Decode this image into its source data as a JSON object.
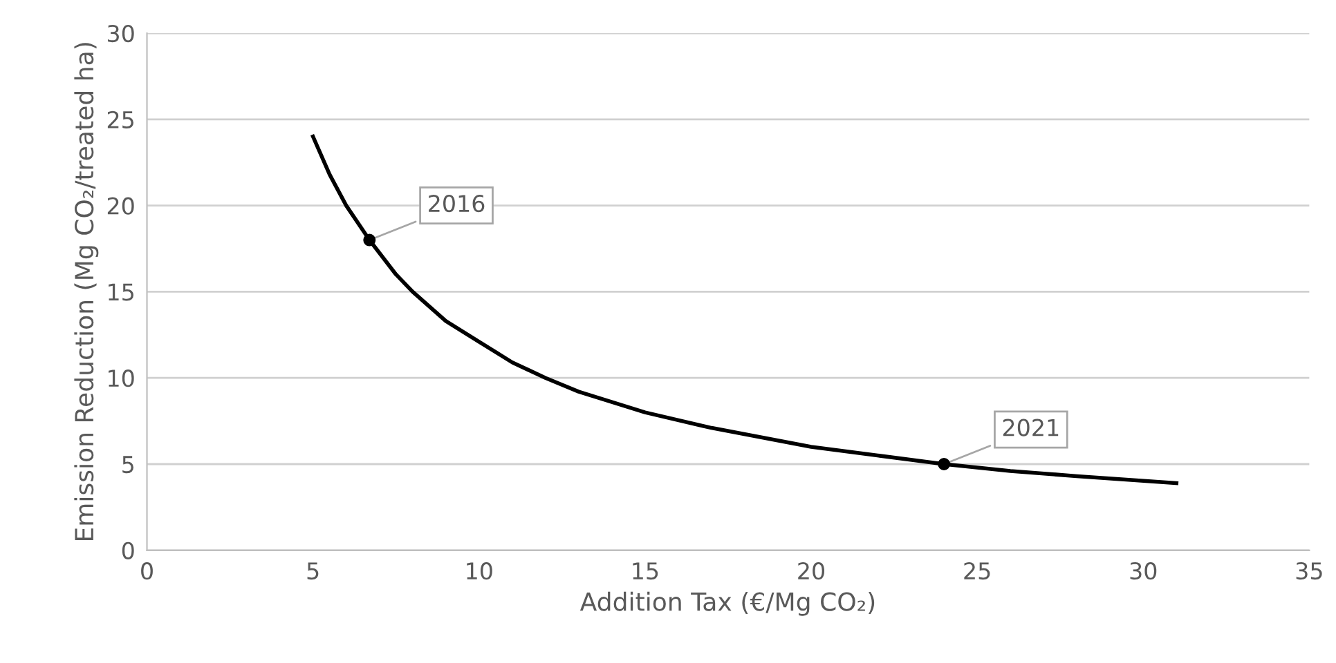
{
  "chart_data": {
    "type": "line",
    "xlabel": "Addition Tax (€/Mg CO₂)",
    "ylabel": "Emission Reduction (Mg CO₂/treated ha)",
    "xlim": [
      0,
      35
    ],
    "xticks": [
      0,
      5,
      10,
      15,
      20,
      25,
      30,
      35
    ],
    "ylim": [
      0,
      30
    ],
    "yticks": [
      0,
      5,
      10,
      15,
      20,
      25,
      30
    ],
    "grid": "y",
    "series": [
      {
        "color": "#000000",
        "x": [
          5,
          5.5,
          6,
          6.7,
          7.5,
          8,
          9,
          10,
          11,
          12,
          13,
          15,
          17,
          20,
          22,
          24,
          26,
          28,
          31
        ],
        "values": [
          24,
          21.8,
          20,
          18,
          16,
          15,
          13.3,
          12.1,
          10.9,
          10,
          9.2,
          8,
          7.1,
          6,
          5.5,
          5,
          4.6,
          4.3,
          3.9
        ]
      },
      {
        "type": "scatter",
        "color": "#000000",
        "marker": "circle",
        "x": [
          6.7,
          24
        ],
        "values": [
          18,
          5
        ]
      }
    ],
    "annotations": [
      {
        "text": "2016",
        "x": 6.7,
        "y": 18
      },
      {
        "text": "2021",
        "x": 24,
        "y": 5
      }
    ]
  }
}
